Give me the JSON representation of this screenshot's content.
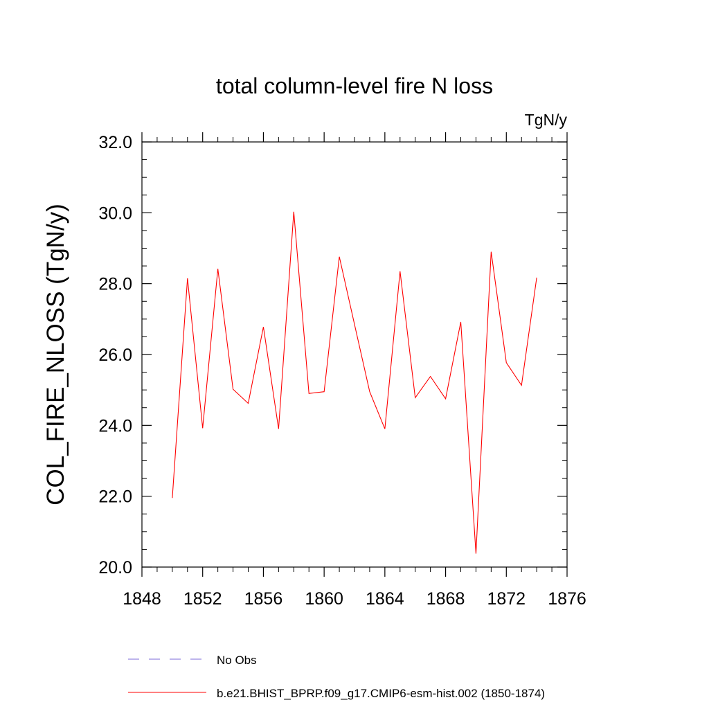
{
  "chart_data": {
    "type": "line",
    "title": "total column-level fire N loss",
    "units": "TgN/y",
    "ylabel": "COL_FIRE_NLOSS  (TgN/y)",
    "xlabel": "",
    "xlim": [
      1848,
      1876
    ],
    "ylim": [
      20.0,
      32.0
    ],
    "x_ticks": [
      "1848",
      "1852",
      "1856",
      "1860",
      "1864",
      "1868",
      "1872",
      "1876"
    ],
    "y_ticks": [
      "20.0",
      "22.0",
      "24.0",
      "26.0",
      "28.0",
      "30.0",
      "32.0"
    ],
    "x": [
      1850,
      1851,
      1852,
      1853,
      1854,
      1855,
      1856,
      1857,
      1858,
      1859,
      1860,
      1861,
      1862,
      1863,
      1864,
      1865,
      1866,
      1867,
      1868,
      1869,
      1870,
      1871,
      1872,
      1873,
      1874
    ],
    "series": [
      {
        "name": "b.e21.BHIST_BPRP.f09_g17.CMIP6-esm-hist.002 (1850-1874)",
        "color": "#ff0000",
        "style": "solid",
        "values": [
          21.95,
          28.15,
          23.92,
          28.42,
          25.02,
          24.62,
          26.78,
          23.9,
          30.03,
          24.9,
          24.95,
          28.76,
          26.85,
          24.95,
          23.9,
          28.35,
          24.78,
          25.38,
          24.75,
          26.92,
          20.38,
          28.9,
          25.77,
          25.13,
          28.17
        ]
      }
    ],
    "legend": [
      {
        "label": "No Obs",
        "color": "#7b68d8",
        "style": "dashed"
      },
      {
        "label": "b.e21.BHIST_BPRP.f09_g17.CMIP6-esm-hist.002 (1850-1874)",
        "color": "#ff0000",
        "style": "solid"
      }
    ],
    "grid": false,
    "legend_position": "bottom"
  }
}
